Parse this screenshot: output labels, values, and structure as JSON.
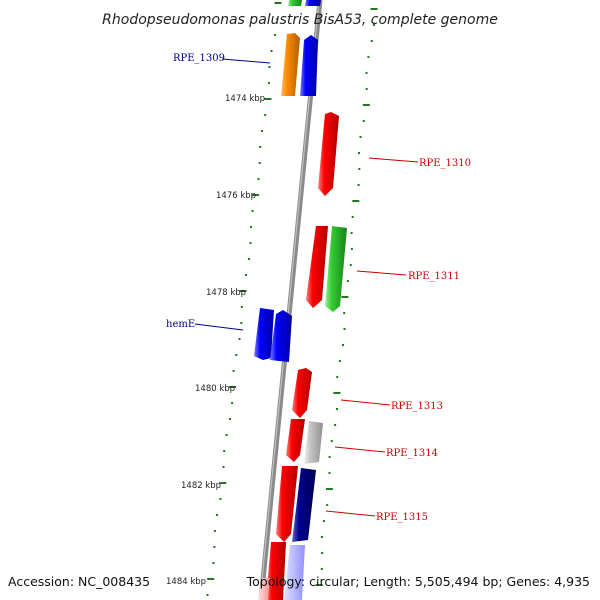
{
  "title": "Rhodopseudomonas palustris BisA53, complete genome",
  "footer": {
    "accession": "Accession: NC_008435",
    "summary": "Topology: circular; Length: 5,505,494 bp; Genes: 4,935"
  },
  "kbp_labels": [
    "1474 kbp",
    "1476 kbp",
    "1478 kbp",
    "1480 kbp",
    "1482 kbp",
    "1484 kbp"
  ],
  "gene_labels": [
    {
      "name": "RPE_1309",
      "color": "#00008b"
    },
    {
      "name": "RPE_1310",
      "color": "#cc0000"
    },
    {
      "name": "RPE_1311",
      "color": "#cc0000"
    },
    {
      "name": "hemE",
      "color": "#00008b"
    },
    {
      "name": "RPE_1313",
      "color": "#cc0000"
    },
    {
      "name": "RPE_1314",
      "color": "#cc0000"
    },
    {
      "name": "RPE_1315",
      "color": "#cc0000"
    }
  ],
  "colors": {
    "backbone": "#8a8a8a",
    "gc_skew": "#1f7a1f",
    "cds_red": "#e00000",
    "cds_blue": "#0000ee",
    "cds_orange": "#ff8c00",
    "cds_green": "#33c233",
    "cds_grey": "#b8b8b8",
    "cds_navy": "#000080"
  }
}
